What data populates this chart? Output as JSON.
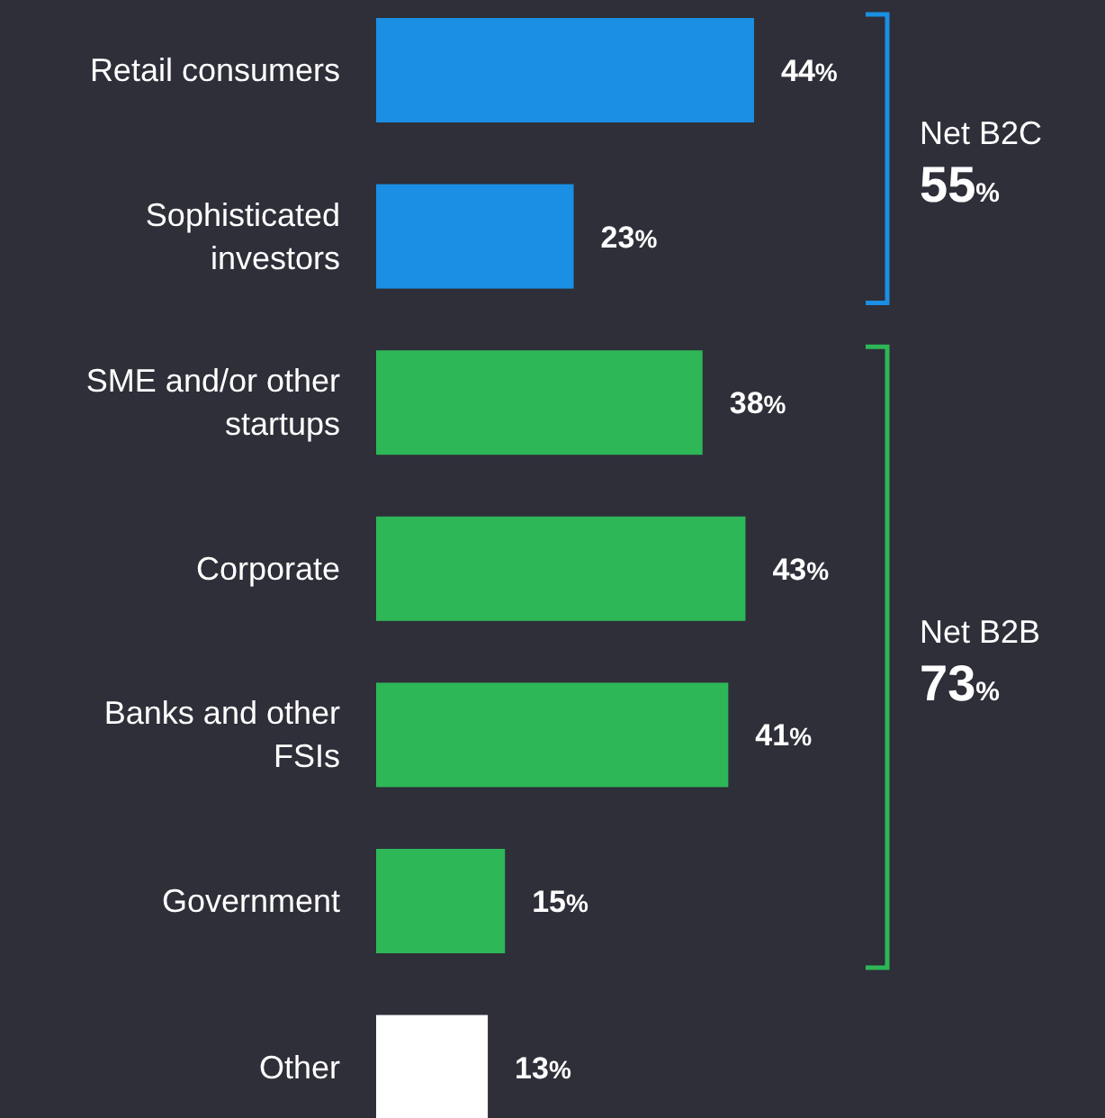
{
  "chart_data": {
    "type": "bar",
    "orientation": "horizontal",
    "categories": [
      "Retail consumers",
      "Sophisticated investors",
      "SME and/or other startups",
      "Corporate",
      "Banks and other FSIs",
      "Government",
      "Other"
    ],
    "values": [
      44,
      23,
      38,
      43,
      41,
      15,
      13
    ],
    "colors": [
      "#1a8fe3",
      "#1a8fe3",
      "#2db757",
      "#2db757",
      "#2db757",
      "#2db757",
      "#ffffff"
    ],
    "value_labels": [
      "44%",
      "23%",
      "38%",
      "43%",
      "41%",
      "15%",
      "13%"
    ],
    "annotations": [
      "Net B2C",
      "55%",
      "Net B2B",
      "73%"
    ]
  }
}
